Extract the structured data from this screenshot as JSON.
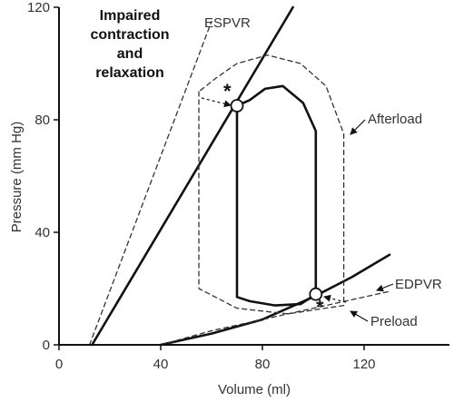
{
  "chart_data": {
    "type": "line",
    "title": "",
    "xlabel": "Volume (ml)",
    "ylabel": "Pressure (mm Hg)",
    "xlim": [
      0,
      150
    ],
    "ylim": [
      0,
      120
    ],
    "x_ticks": [
      0,
      40,
      80,
      120
    ],
    "y_ticks": [
      0,
      40,
      80,
      120
    ],
    "grid": false,
    "colors": {
      "axis": "#111111",
      "solid": "#111111",
      "dashed": "#333333"
    },
    "series": [
      {
        "id": "espvr_solid",
        "style": "solid",
        "points": [
          [
            13,
            0
          ],
          [
            92,
            120
          ]
        ]
      },
      {
        "id": "espvr_dashed",
        "style": "dashed",
        "points": [
          [
            12,
            0
          ],
          [
            60,
            115
          ]
        ]
      },
      {
        "id": "edpvr_solid",
        "style": "solid",
        "points": [
          [
            40,
            0
          ],
          [
            60,
            4
          ],
          [
            80,
            9
          ],
          [
            100,
            17
          ],
          [
            115,
            24
          ],
          [
            130,
            32
          ]
        ]
      },
      {
        "id": "edpvr_dashed",
        "style": "dashed",
        "points": [
          [
            40,
            0
          ],
          [
            60,
            5
          ],
          [
            80,
            9
          ],
          [
            100,
            13
          ],
          [
            115,
            16
          ],
          [
            130,
            19
          ]
        ]
      },
      {
        "id": "pv_loop_solid",
        "style": "solid",
        "closed": true,
        "points": [
          [
            70,
            85
          ],
          [
            70,
            17
          ],
          [
            75,
            15.5
          ],
          [
            85,
            14
          ],
          [
            95,
            14.5
          ],
          [
            101,
            18
          ],
          [
            101,
            76
          ],
          [
            96,
            86
          ],
          [
            88,
            92
          ],
          [
            81,
            91
          ],
          [
            75,
            87
          ]
        ]
      },
      {
        "id": "pv_loop_dashed",
        "style": "dashed",
        "closed": true,
        "points": [
          [
            55,
            90
          ],
          [
            55,
            20
          ],
          [
            70,
            13
          ],
          [
            90,
            11
          ],
          [
            112,
            14
          ],
          [
            112,
            75
          ],
          [
            105,
            92
          ],
          [
            95,
            100
          ],
          [
            82,
            103
          ],
          [
            70,
            100
          ],
          [
            62,
            95
          ]
        ]
      }
    ],
    "points": [
      {
        "id": "end_systolic_point",
        "x": 70,
        "y": 85
      },
      {
        "id": "end_diastolic_point",
        "x": 101,
        "y": 18
      }
    ],
    "annotations": {
      "impaired": [
        "Impaired",
        "contraction",
        "and",
        "relaxation"
      ],
      "espvr": "ESPVR",
      "afterload": "Afterload",
      "edpvr": "EDPVR",
      "preload": "Preload",
      "star": "*"
    }
  }
}
